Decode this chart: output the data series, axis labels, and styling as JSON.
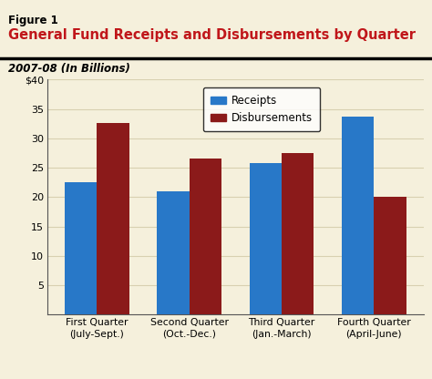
{
  "figure_label": "Figure 1",
  "title": "General Fund Receipts and Disbursements by Quarter",
  "subtitle": "2007-08 (In Billions)",
  "categories": [
    "First Quarter\n(July-Sept.)",
    "Second Quarter\n(Oct.-Dec.)",
    "Third Quarter\n(Jan.-March)",
    "Fourth Quarter\n(April-June)"
  ],
  "receipts": [
    22.5,
    21.0,
    25.8,
    33.7
  ],
  "disbursements": [
    32.6,
    26.5,
    27.5,
    20.1
  ],
  "receipt_color": "#2878C8",
  "disbursement_color": "#8B1A1A",
  "background_color": "#F5F0DC",
  "ylim": [
    0,
    40
  ],
  "yticks": [
    0,
    5,
    10,
    15,
    20,
    25,
    30,
    35,
    40
  ],
  "bar_width": 0.35,
  "title_color": "#C0161A",
  "figure_label_color": "#000000",
  "subtitle_color": "#000000",
  "grid_color": "#D8D0B0",
  "legend_labels": [
    "Receipts",
    "Disbursements"
  ]
}
